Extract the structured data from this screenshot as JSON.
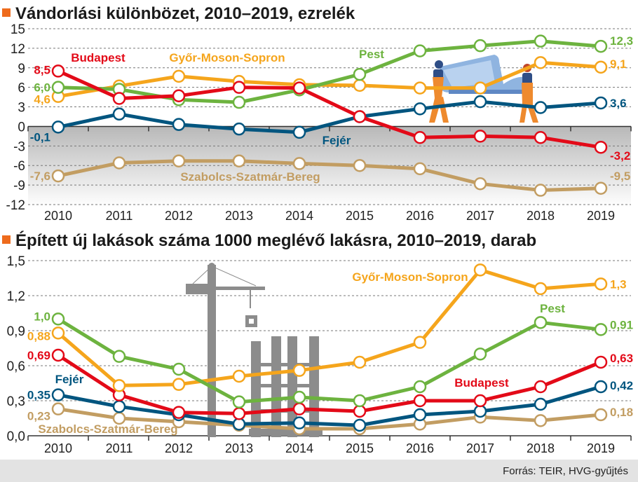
{
  "source": "Forrás: TEIR, HVG-gyűjtés",
  "colors": {
    "accent": "#ee6b1c",
    "Budapest": "#e30a18",
    "Pest": "#6db33f",
    "Győr-Moson-Sopron": "#f5a51c",
    "Fejér": "#00557f",
    "Szabolcs-Szatmár-Bereg": "#c29d62",
    "negative_shade_top": "#b5b5b5",
    "footer_bg": "#e3e3e3"
  },
  "icons": [
    "title-square-icon",
    "movers-carrying-sofa-icon",
    "construction-crane-icon"
  ],
  "chart_data": [
    {
      "type": "line",
      "title": "Vándorlási különbözet, 2010–2019, ezrelék",
      "xlabel": "",
      "ylabel": "",
      "x": [
        "2010",
        "2011",
        "2012",
        "2013",
        "2014",
        "2015",
        "2016",
        "2017",
        "2018",
        "2019"
      ],
      "ylim": [
        -12,
        15
      ],
      "yticks": [
        15,
        12,
        9,
        6,
        3,
        0,
        -3,
        -6,
        -9,
        -12
      ],
      "ytick_labels": [
        "15",
        "12",
        "9",
        "6",
        "3",
        "0",
        "-3",
        "-6",
        "-9",
        "-12"
      ],
      "grid": true,
      "negative_region_shaded": true,
      "series": [
        {
          "name": "Pest",
          "values": [
            6.0,
            5.7,
            4.1,
            3.7,
            5.6,
            8.0,
            11.6,
            12.4,
            13.1,
            12.3
          ],
          "start_label": "6,0",
          "end_label": "12,3"
        },
        {
          "name": "Győr-Moson-Sopron",
          "values": [
            4.6,
            6.2,
            7.7,
            6.9,
            6.4,
            6.3,
            5.9,
            5.9,
            9.8,
            9.1
          ],
          "start_label": "4,6",
          "end_label": "9,1"
        },
        {
          "name": "Budapest",
          "values": [
            8.5,
            4.3,
            4.7,
            6.0,
            5.9,
            1.5,
            -1.7,
            -1.5,
            -1.7,
            -3.2
          ],
          "start_label": "8,5",
          "end_label": "-3,2"
        },
        {
          "name": "Fejér",
          "values": [
            -0.1,
            1.9,
            0.3,
            -0.4,
            -0.9,
            1.5,
            2.7,
            3.8,
            2.9,
            3.6
          ],
          "start_label": "-0,1",
          "end_label": "3,6"
        },
        {
          "name": "Szabolcs-Szatmár-Bereg",
          "values": [
            -7.6,
            -5.6,
            -5.3,
            -5.3,
            -5.7,
            -6.0,
            -6.5,
            -8.8,
            -9.8,
            -9.5
          ],
          "start_label": "-7,6",
          "end_label": "-9,5"
        }
      ],
      "annotations": [
        "Budapest",
        "Győr-Moson-Sopron",
        "Pest",
        "Fejér",
        "Szabolcs-Szatmár-Bereg"
      ]
    },
    {
      "type": "line",
      "title": "Épített új lakások száma 1000 meglévő lakásra, 2010–2019, darab",
      "xlabel": "",
      "ylabel": "",
      "x": [
        "2010",
        "2011",
        "2012",
        "2013",
        "2014",
        "2015",
        "2016",
        "2017",
        "2018",
        "2019"
      ],
      "ylim": [
        0,
        1.5
      ],
      "yticks": [
        1.5,
        1.2,
        0.9,
        0.6,
        0.3,
        0.0
      ],
      "ytick_labels": [
        "1,5",
        "1,2",
        "0,9",
        "0,6",
        "0,3",
        "0,0"
      ],
      "grid": true,
      "series": [
        {
          "name": "Győr-Moson-Sopron",
          "values": [
            0.88,
            0.43,
            0.44,
            0.51,
            0.56,
            0.63,
            0.8,
            1.42,
            1.26,
            1.3
          ],
          "start_label": "0,88",
          "end_label": "1,3"
        },
        {
          "name": "Pest",
          "values": [
            1.0,
            0.68,
            0.57,
            0.29,
            0.33,
            0.3,
            0.42,
            0.7,
            0.97,
            0.91
          ],
          "start_label": "1,0",
          "end_label": "0,91"
        },
        {
          "name": "Budapest",
          "values": [
            0.69,
            0.35,
            0.2,
            0.19,
            0.23,
            0.21,
            0.3,
            0.3,
            0.42,
            0.63
          ],
          "start_label": "0,69",
          "end_label": "0,63"
        },
        {
          "name": "Fejér",
          "values": [
            0.35,
            0.25,
            0.18,
            0.1,
            0.11,
            0.09,
            0.18,
            0.21,
            0.27,
            0.42
          ],
          "start_label": "0,35",
          "end_label": "0,42"
        },
        {
          "name": "Szabolcs-Szatmár-Bereg",
          "values": [
            0.23,
            0.15,
            0.12,
            0.09,
            0.06,
            0.06,
            0.1,
            0.16,
            0.13,
            0.18
          ],
          "start_label": "0,23",
          "end_label": "0,18"
        }
      ],
      "annotations": [
        "Győr-Moson-Sopron",
        "Pest",
        "Budapest",
        "Fejér",
        "Szabolcs-Szatmár-Bereg"
      ]
    }
  ]
}
